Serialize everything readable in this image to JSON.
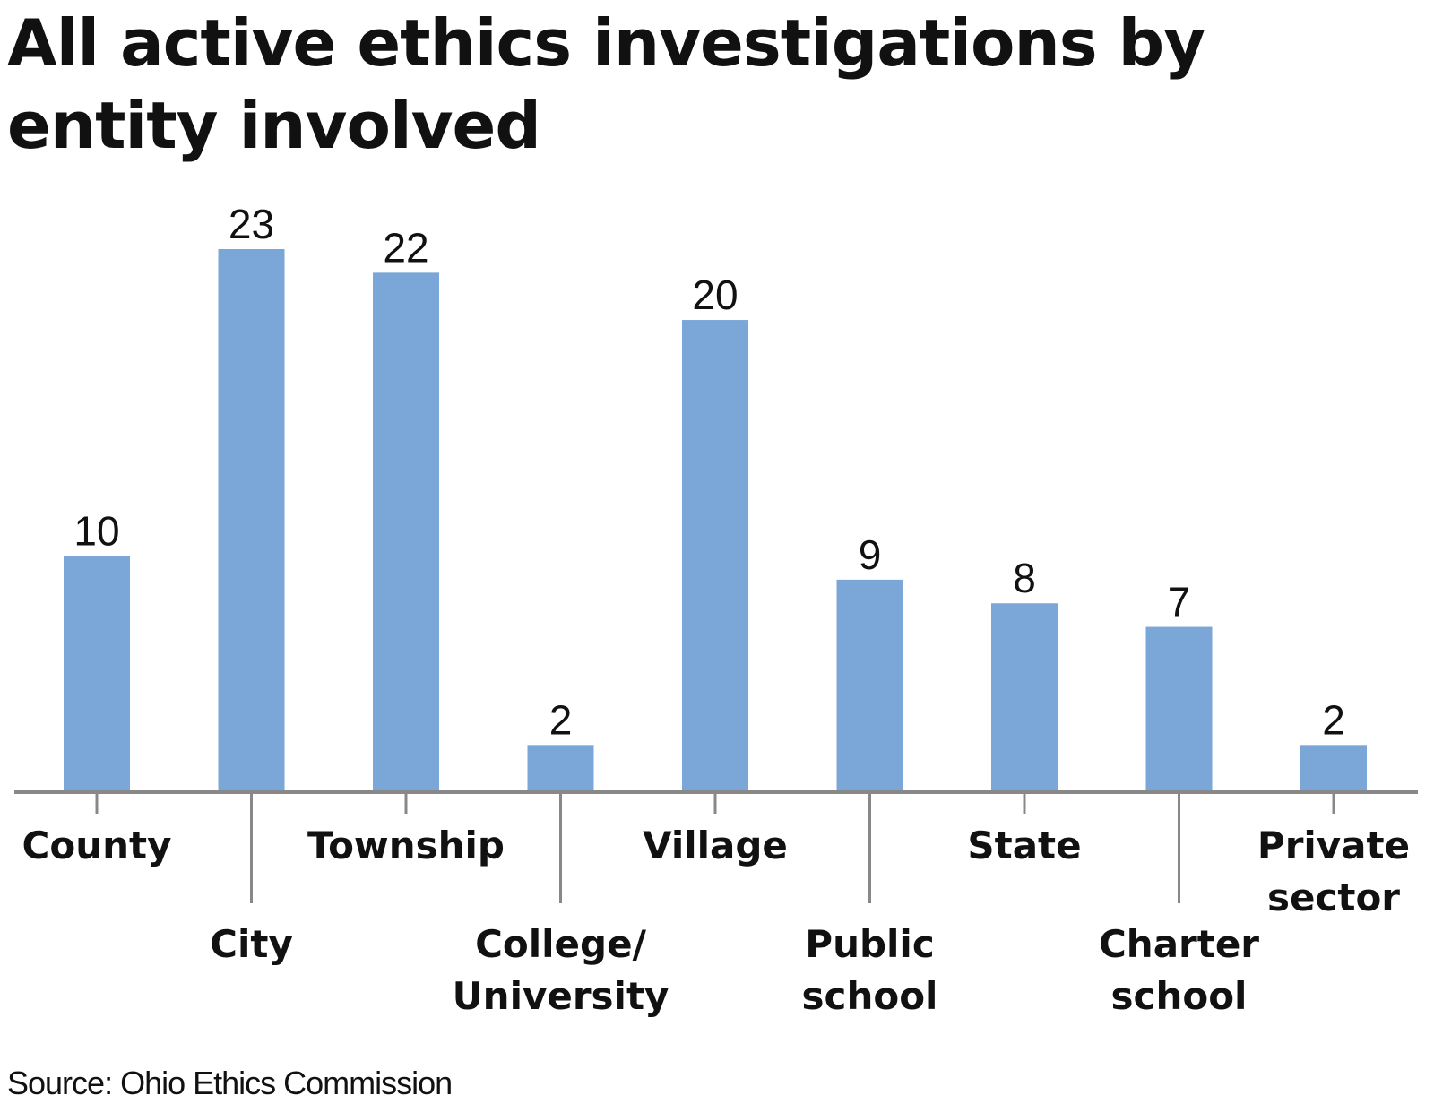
{
  "chart_data": {
    "type": "bar",
    "title": "All active ethics investigations by entity involved",
    "categories": [
      [
        "County"
      ],
      [
        "City"
      ],
      [
        "Township"
      ],
      [
        "College/",
        "University"
      ],
      [
        "Village"
      ],
      [
        "Public",
        "school"
      ],
      [
        "State"
      ],
      [
        "Charter",
        "school"
      ],
      [
        "Private",
        "sector"
      ]
    ],
    "values": [
      10,
      23,
      22,
      2,
      20,
      9,
      8,
      7,
      2
    ],
    "ylim": [
      0,
      23
    ],
    "grid": false,
    "bar_color": "#7ba7d8",
    "axis_color": "#888888",
    "source": "Source: Ohio Ethics Commission"
  }
}
